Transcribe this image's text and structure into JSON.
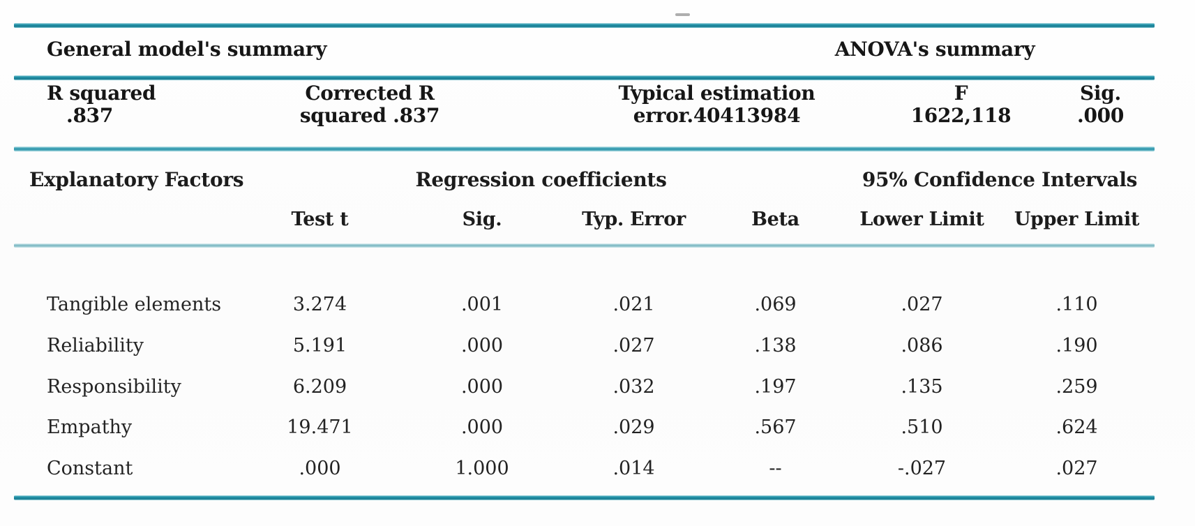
{
  "model_summary": {
    "general_title": "General model's summary",
    "anova_title": "ANOVA's summary",
    "stats": [
      {
        "line1": "R squared",
        "line2": ".837"
      },
      {
        "line1": "Corrected R",
        "line2": "squared .837"
      },
      {
        "line1": "Typical estimation",
        "line2": "error.40413984"
      },
      {
        "line1": "F",
        "line2": "1622,118"
      },
      {
        "line1": "Sig.",
        "line2": ".000"
      }
    ]
  },
  "coefficients_table": {
    "factor_header": "Explanatory Factors",
    "group_headers": {
      "regression": "Regression coefficients",
      "confidence": "95% Confidence Intervals"
    },
    "columns": [
      "Test t",
      "Sig.",
      "Typ. Error",
      "Beta",
      "Lower Limit",
      "Upper Limit"
    ],
    "rows": [
      {
        "factor": "Tangible elements",
        "test_t": "3.274",
        "sig": ".001",
        "typ_error": ".021",
        "beta": ".069",
        "lower": ".027",
        "upper": ".110"
      },
      {
        "factor": "Reliability",
        "test_t": "5.191",
        "sig": ".000",
        "typ_error": ".027",
        "beta": ".138",
        "lower": ".086",
        "upper": ".190"
      },
      {
        "factor": "Responsibility",
        "test_t": "6.209",
        "sig": ".000",
        "typ_error": ".032",
        "beta": ".197",
        "lower": ".135",
        "upper": ".259"
      },
      {
        "factor": "Empathy",
        "test_t": "19.471",
        "sig": ".000",
        "typ_error": ".029",
        "beta": ".567",
        "lower": ".510",
        "upper": ".624"
      },
      {
        "factor": "Constant",
        "test_t": ".000",
        "sig": "1.000",
        "typ_error": ".014",
        "beta": "--",
        "lower": "-.027",
        "upper": ".027"
      }
    ]
  },
  "style": {
    "rule_color": "#1b879e",
    "top_mark_color": "#9a9a9a"
  }
}
